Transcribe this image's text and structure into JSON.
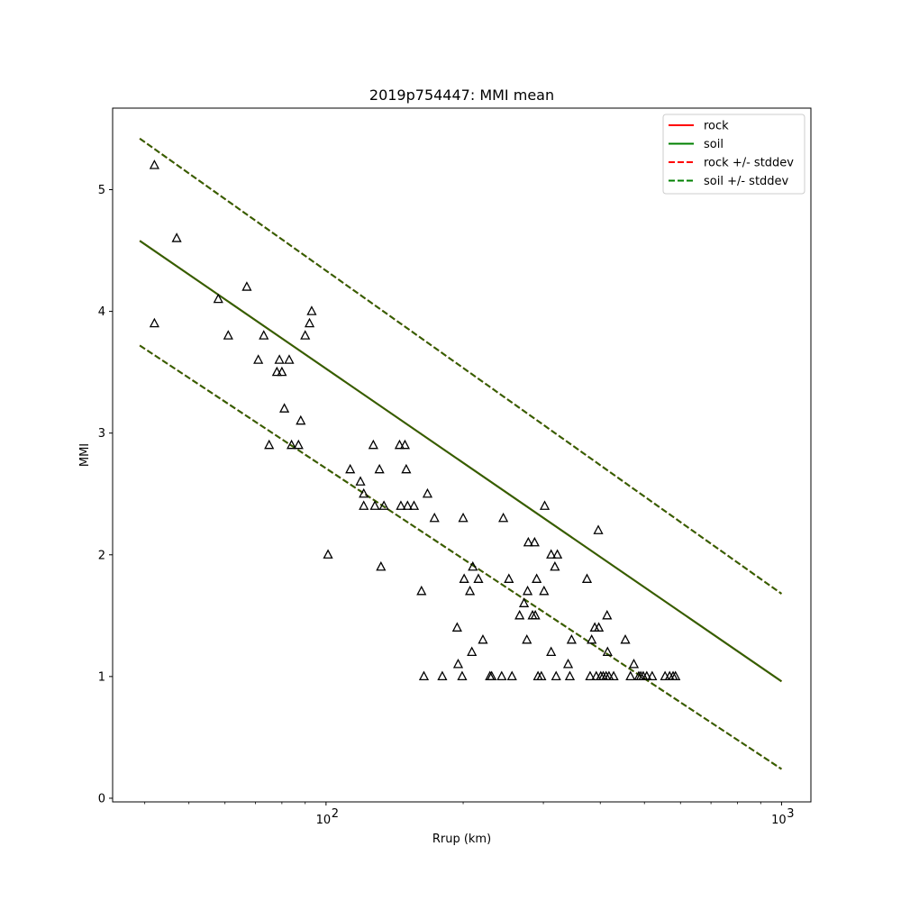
{
  "chart_data": {
    "type": "scatter",
    "title": "2019p754447: MMI mean",
    "xlabel": "Rrup (km)",
    "ylabel": "MMI",
    "xscale": "log",
    "xlim": [
      34,
      1160
    ],
    "ylim": [
      -0.03,
      5.67
    ],
    "x_ticks": [
      {
        "value": 100,
        "label": "10",
        "exp": "2"
      },
      {
        "value": 1000,
        "label": "10",
        "exp": "3"
      }
    ],
    "y_ticks": [
      0,
      1,
      2,
      3,
      4,
      5
    ],
    "grid": false,
    "legend_position": "top-right",
    "colors": {
      "rock": "#ff0000",
      "soil": "#008000",
      "overlap": "#2d6400",
      "points": "#000000"
    },
    "series": [
      {
        "name": "rock",
        "style": "solid",
        "color": "#ff0000",
        "points": [
          [
            39,
            4.58
          ],
          [
            1000,
            0.96
          ]
        ]
      },
      {
        "name": "soil",
        "style": "solid",
        "color": "#008000",
        "points": [
          [
            39,
            4.58
          ],
          [
            1000,
            0.96
          ]
        ]
      },
      {
        "name": "rock +/- stddev",
        "style": "dashed",
        "color": "#ff0000",
        "upper": [
          [
            39,
            5.42
          ],
          [
            1000,
            1.68
          ]
        ],
        "lower": [
          [
            39,
            3.72
          ],
          [
            1000,
            0.24
          ]
        ]
      },
      {
        "name": "soil +/- stddev",
        "style": "dashed",
        "color": "#008000",
        "upper": [
          [
            39,
            5.42
          ],
          [
            1000,
            1.68
          ]
        ],
        "lower": [
          [
            39,
            3.72
          ],
          [
            1000,
            0.24
          ]
        ]
      }
    ],
    "observations": [
      [
        42,
        5.2
      ],
      [
        42,
        3.9
      ],
      [
        47,
        4.6
      ],
      [
        58,
        4.1
      ],
      [
        61,
        3.8
      ],
      [
        67,
        4.2
      ],
      [
        71,
        3.6
      ],
      [
        73,
        3.8
      ],
      [
        75,
        2.9
      ],
      [
        79,
        3.6
      ],
      [
        78,
        3.5
      ],
      [
        80,
        3.5
      ],
      [
        81,
        3.2
      ],
      [
        83,
        3.6
      ],
      [
        84,
        2.9
      ],
      [
        87,
        2.9
      ],
      [
        88,
        3.1
      ],
      [
        90,
        3.8
      ],
      [
        92,
        3.9
      ],
      [
        93,
        4.0
      ],
      [
        101,
        2.0
      ],
      [
        113,
        2.7
      ],
      [
        119,
        2.6
      ],
      [
        121,
        2.5
      ],
      [
        121,
        2.4
      ],
      [
        127,
        2.9
      ],
      [
        128,
        2.4
      ],
      [
        131,
        2.7
      ],
      [
        132,
        1.9
      ],
      [
        134,
        2.4
      ],
      [
        145,
        2.9
      ],
      [
        146,
        2.4
      ],
      [
        149,
        2.9
      ],
      [
        150,
        2.7
      ],
      [
        151,
        2.4
      ],
      [
        156,
        2.4
      ],
      [
        162,
        1.7
      ],
      [
        164,
        1.0
      ],
      [
        167,
        2.5
      ],
      [
        173,
        2.3
      ],
      [
        180,
        1.0
      ],
      [
        194,
        1.4
      ],
      [
        195,
        1.1
      ],
      [
        199,
        1.0
      ],
      [
        200,
        2.3
      ],
      [
        201,
        1.8
      ],
      [
        207,
        1.7
      ],
      [
        209,
        1.2
      ],
      [
        210,
        1.9
      ],
      [
        216,
        1.8
      ],
      [
        221,
        1.3
      ],
      [
        229,
        1.0
      ],
      [
        231,
        1.0
      ],
      [
        243,
        1.0
      ],
      [
        245,
        2.3
      ],
      [
        252,
        1.8
      ],
      [
        256,
        1.0
      ],
      [
        266,
        1.5
      ],
      [
        272,
        1.6
      ],
      [
        276,
        1.3
      ],
      [
        277,
        1.7
      ],
      [
        278,
        2.1
      ],
      [
        284,
        1.5
      ],
      [
        287,
        2.1
      ],
      [
        288,
        1.5
      ],
      [
        290,
        1.8
      ],
      [
        292,
        1.0
      ],
      [
        297,
        1.0
      ],
      [
        301,
        1.7
      ],
      [
        302,
        2.4
      ],
      [
        312,
        2.0
      ],
      [
        312,
        1.2
      ],
      [
        318,
        1.9
      ],
      [
        320,
        1.0
      ],
      [
        322,
        2.0
      ],
      [
        340,
        1.1
      ],
      [
        343,
        1.0
      ],
      [
        346,
        1.3
      ],
      [
        374,
        1.8
      ],
      [
        380,
        1.0
      ],
      [
        383,
        1.3
      ],
      [
        389,
        1.4
      ],
      [
        392,
        1.0
      ],
      [
        397,
        1.4
      ],
      [
        396,
        2.2
      ],
      [
        401,
        1.0
      ],
      [
        406,
        1.0
      ],
      [
        412,
        1.0
      ],
      [
        415,
        1.2
      ],
      [
        414,
        1.5
      ],
      [
        418,
        1.0
      ],
      [
        428,
        1.0
      ],
      [
        454,
        1.3
      ],
      [
        466,
        1.0
      ],
      [
        474,
        1.1
      ],
      [
        486,
        1.0
      ],
      [
        491,
        1.0
      ],
      [
        497,
        1.0
      ],
      [
        506,
        1.0
      ],
      [
        520,
        1.0
      ],
      [
        555,
        1.0
      ],
      [
        568,
        1.0
      ],
      [
        578,
        1.0
      ],
      [
        585,
        1.0
      ]
    ]
  }
}
